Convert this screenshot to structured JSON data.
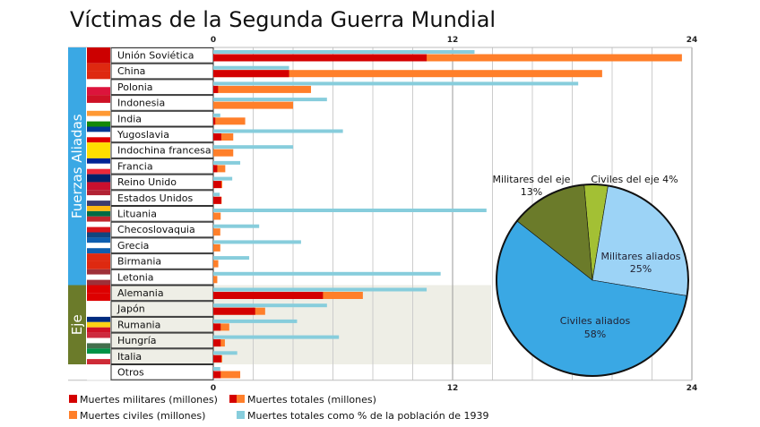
{
  "chart_data": {
    "type": "bar",
    "title": "Víctimas de la Segunda Guerra Mundial",
    "orientation": "horizontal",
    "xlim": [
      0,
      24
    ],
    "ticks": [
      "0",
      "12",
      "24"
    ],
    "grid": true,
    "groups": [
      {
        "label": "Fuerzas Aliadas",
        "color": "#3aa8e4",
        "rows": [
          0,
          15
        ]
      },
      {
        "label": "Eje",
        "color": "#6b7b2a",
        "rows": [
          16,
          20
        ]
      }
    ],
    "categories": [
      "Unión Soviética",
      "China",
      "Polonia",
      "Indonesia",
      "India",
      "Yugoslavia",
      "Indochina francesa",
      "Francia",
      "Reino Unido",
      "Estados Unidos",
      "Lituania",
      "Checoslovaquia",
      "Grecia",
      "Birmania",
      "Letonia",
      "Alemania",
      "Japón",
      "Rumania",
      "Hungría",
      "Italia",
      "Otros"
    ],
    "flags": [
      [
        "#cc0000"
      ],
      [
        "#de2910",
        "#de2910"
      ],
      [
        "#ffffff",
        "#dc143c"
      ],
      [
        "#ce1126",
        "#ffffff"
      ],
      [
        "#ff9933",
        "#ffffff",
        "#138808"
      ],
      [
        "#003893",
        "#ffffff",
        "#de0000"
      ],
      [
        "#ffde00"
      ],
      [
        "#002395",
        "#ffffff",
        "#ed2939"
      ],
      [
        "#012169",
        "#c8102e"
      ],
      [
        "#b22234",
        "#ffffff",
        "#3c3b6e"
      ],
      [
        "#fdb913",
        "#006a44",
        "#c1272d"
      ],
      [
        "#ffffff",
        "#d7141a",
        "#11457e"
      ],
      [
        "#0d5eaf",
        "#ffffff",
        "#0d5eaf"
      ],
      [
        "#de2910",
        "#de2910"
      ],
      [
        "#9e3039",
        "#ffffff",
        "#9e3039"
      ],
      [
        "#dd0000",
        "#dd0000"
      ],
      [
        "#ffffff",
        "#ffffff"
      ],
      [
        "#002b7f",
        "#fcd116",
        "#ce1126"
      ],
      [
        "#cd2a3e",
        "#ffffff",
        "#436f4d"
      ],
      [
        "#009246",
        "#ffffff",
        "#ce2b37"
      ],
      [
        "#ffffff"
      ]
    ],
    "series": [
      {
        "name": "Muertes militares (millones)",
        "color": "#d40000",
        "values": [
          10.7,
          3.8,
          0.24,
          0,
          0.1,
          0.4,
          0,
          0.2,
          0.4,
          0.4,
          0,
          0,
          0,
          0,
          0,
          5.5,
          2.1,
          0.37,
          0.37,
          0.4,
          0.37
        ]
      },
      {
        "name": "Muertes totales (millones)",
        "color": "#ff7f2a",
        "values": [
          23.5,
          19.5,
          4.9,
          4.0,
          1.6,
          1.0,
          1.0,
          0.6,
          0.45,
          0.42,
          0.37,
          0.35,
          0.35,
          0.25,
          0.2,
          7.5,
          2.6,
          0.8,
          0.58,
          0.45,
          1.35
        ]
      },
      {
        "name": "Muertes totales como % de la población de 1939",
        "color": "#87cddc",
        "values": [
          13.1,
          3.8,
          18.3,
          5.7,
          0.35,
          6.5,
          4.0,
          1.35,
          0.95,
          0.32,
          13.7,
          2.3,
          4.4,
          1.8,
          11.4,
          10.7,
          5.7,
          4.2,
          6.3,
          1.2,
          0.35
        ]
      }
    ],
    "legend": [
      {
        "label": "Muertes militares (millones)",
        "colors": [
          "#d40000"
        ]
      },
      {
        "label": "Muertes totales (millones)",
        "colors": [
          "#d40000",
          "#ff7f2a"
        ]
      },
      {
        "label": "Muertes civiles (millones)",
        "colors": [
          "#ff7f2a"
        ]
      },
      {
        "label": "Muertes totales como % de la población de 1939",
        "colors": [
          "#87cddc"
        ]
      }
    ],
    "pie": {
      "type": "pie",
      "slices": [
        {
          "label": "Civiles del eje",
          "value": 4,
          "pct": "4%",
          "color": "#a3c034"
        },
        {
          "label": "Militares aliados",
          "value": 25,
          "pct": "25%",
          "color": "#9cd3f6"
        },
        {
          "label": "Civiles aliados",
          "value": 58,
          "pct": "58%",
          "color": "#3aa8e4"
        },
        {
          "label": "Militares del eje",
          "value": 13,
          "pct": "13%",
          "color": "#6b7b2a"
        }
      ]
    }
  }
}
